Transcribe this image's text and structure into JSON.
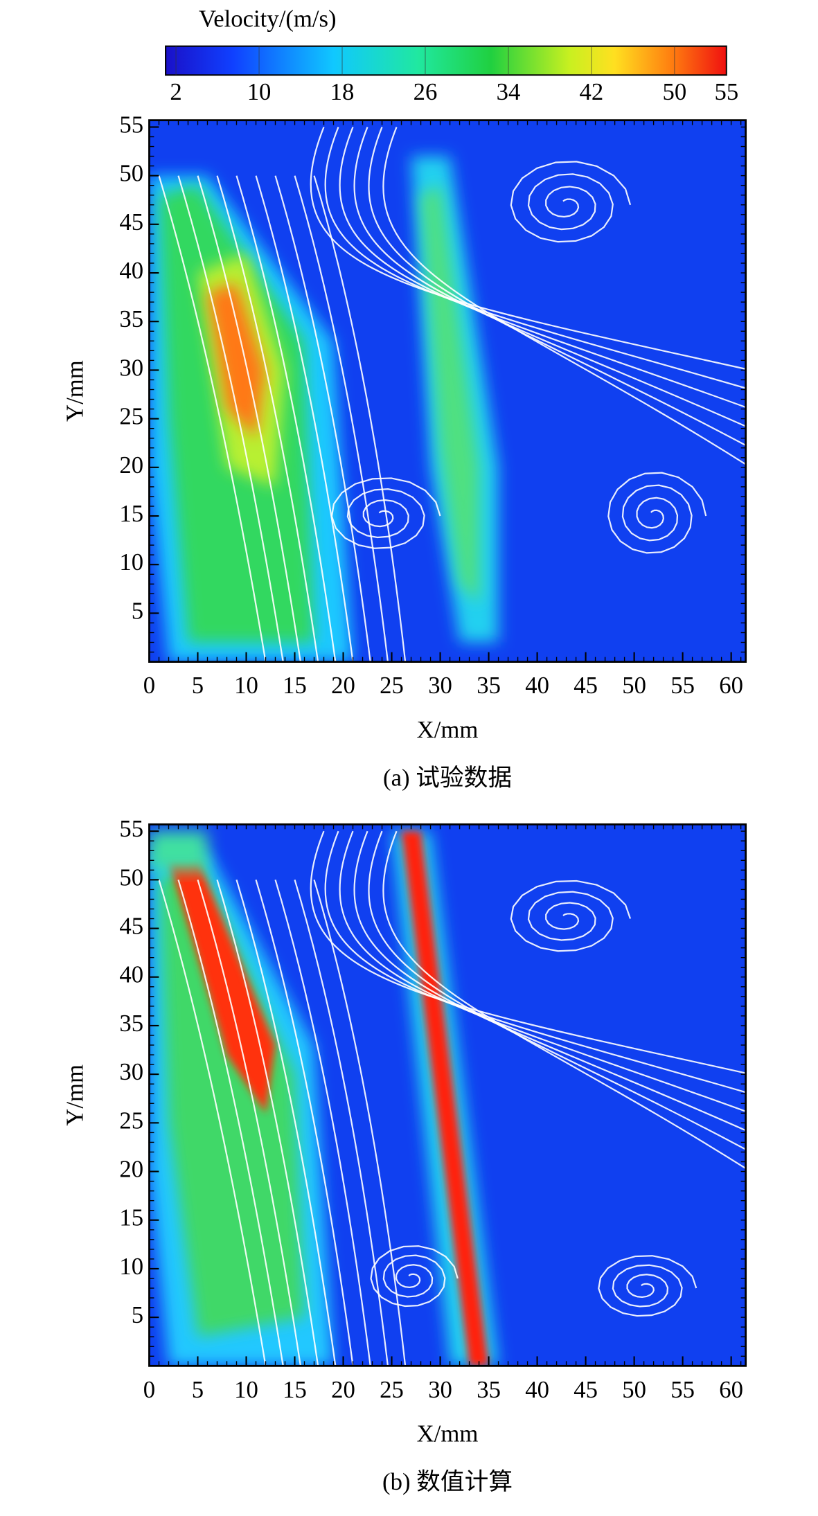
{
  "colorbar": {
    "title": "Velocity/(m/s)",
    "lim": [
      1,
      55
    ],
    "ticks": [
      2,
      10,
      18,
      26,
      34,
      42,
      50,
      55
    ]
  },
  "chart_data": [
    {
      "type": "contour",
      "caption": "(a) 试验数据",
      "x_label": "X/mm",
      "y_label": "Y/mm",
      "xlim": [
        0,
        61.5
      ],
      "ylim": [
        0,
        55.7
      ],
      "xticks": [
        0,
        5,
        10,
        15,
        20,
        25,
        30,
        35,
        40,
        45,
        50,
        55,
        60
      ],
      "yticks": [
        5,
        10,
        15,
        20,
        25,
        30,
        35,
        40,
        45,
        50,
        55
      ]
    },
    {
      "type": "contour",
      "caption": "(b) 数值计算",
      "x_label": "X/mm",
      "y_label": "Y/mm",
      "xlim": [
        0,
        61.5
      ],
      "ylim": [
        0,
        55.7
      ],
      "xticks": [
        0,
        5,
        10,
        15,
        20,
        25,
        30,
        35,
        40,
        45,
        50,
        55,
        60
      ],
      "yticks": [
        5,
        10,
        15,
        20,
        25,
        30,
        35,
        40,
        45,
        50,
        55
      ]
    }
  ]
}
